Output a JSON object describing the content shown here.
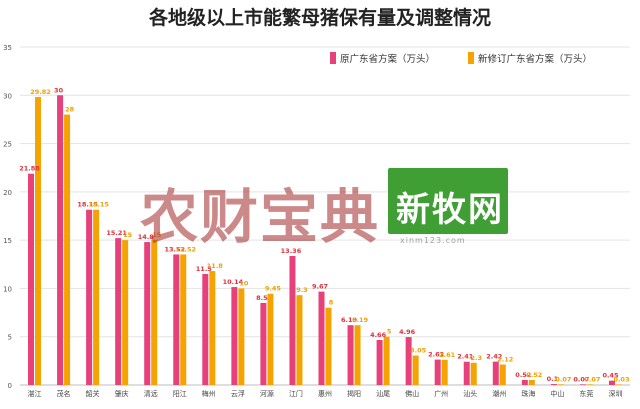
{
  "chart_data": {
    "type": "bar",
    "title": "各地级以上市能繁母猪保有量及调整情况",
    "xlabel": "",
    "ylabel": "",
    "ylim": [
      0,
      35
    ],
    "yticks": [
      0,
      5,
      10,
      15,
      20,
      25,
      30,
      35
    ],
    "grid": true,
    "legend_position": "top-right",
    "categories": [
      "湛江",
      "茂名",
      "韶关",
      "肇庆",
      "清远",
      "阳江",
      "梅州",
      "云浮",
      "河源",
      "江门",
      "惠州",
      "揭阳",
      "汕尾",
      "佛山",
      "广州",
      "汕头",
      "潮州",
      "珠海",
      "中山",
      "东莞",
      "深圳"
    ],
    "series": [
      {
        "name": "原广东省方案（万头）",
        "color": "#e8407a",
        "values": [
          21.88,
          30,
          18.15,
          15.21,
          14.8,
          13.52,
          11.5,
          10.14,
          8.5,
          13.36,
          9.67,
          6.19,
          4.66,
          4.96,
          2.63,
          2.41,
          2.42,
          0.52,
          0.1,
          0.07,
          0.45
        ],
        "labels": [
          "21.88",
          "30",
          "18.15",
          "15.21",
          "14.8",
          "13.52",
          "11.5",
          "10.14",
          "8.5",
          "13.36",
          "9.67",
          "6.19",
          "4.66",
          "4.96",
          "2.63",
          "2.41",
          "2.42",
          "0.52",
          "0.1",
          "0.07",
          "0.45"
        ]
      },
      {
        "name": "新修订广东省方案（万头）",
        "color": "#f5a300",
        "values": [
          29.82,
          28,
          18.15,
          15,
          15,
          13.52,
          11.8,
          10,
          9.45,
          9.3,
          8,
          6.19,
          5,
          3.05,
          2.61,
          2.3,
          2.12,
          0.52,
          0.07,
          0.07,
          0.03
        ],
        "labels": [
          "29.82",
          "28",
          "18.15",
          "15",
          "15",
          "13.52",
          "11.8",
          "10",
          "9.45",
          "9.3",
          "8",
          "6.19",
          "5",
          "3.05",
          "2.61",
          "2.3",
          "2.12",
          "0.52",
          "0.07",
          "0.07",
          "0.03"
        ]
      }
    ]
  },
  "watermarks": {
    "left_text": "农财宝典",
    "right_text": "新牧网",
    "right_sub": "xinm123.com"
  }
}
